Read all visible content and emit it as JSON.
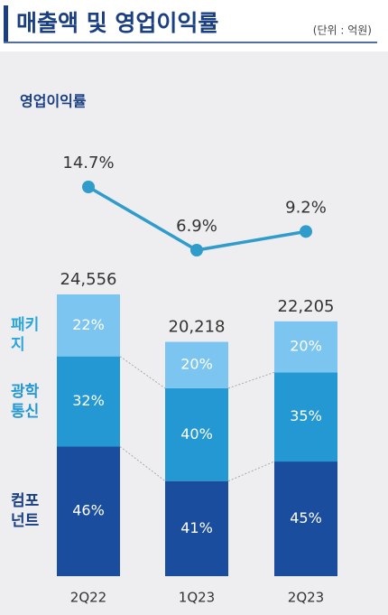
{
  "chart_data": {
    "type": "bar",
    "title": "매출액 및 영업이익률",
    "unit_note": "(단위 : 억원)",
    "categories": [
      "2Q22",
      "1Q23",
      "2Q23"
    ],
    "totals": [
      24556,
      20218,
      22205
    ],
    "total_labels": [
      "24,556",
      "20,218",
      "22,205"
    ],
    "series": [
      {
        "name": "컴포 넌트",
        "color": "#1b4d9e",
        "values": [
          46,
          41,
          45
        ],
        "value_labels": [
          "46%",
          "41%",
          "45%"
        ]
      },
      {
        "name": "광학 통신",
        "color": "#2498d2",
        "values": [
          32,
          40,
          35
        ],
        "value_labels": [
          "32%",
          "40%",
          "35%"
        ]
      },
      {
        "name": "패키지",
        "color": "#7bc5f0",
        "values": [
          22,
          20,
          20
        ],
        "value_labels": [
          "22%",
          "20%",
          "20%"
        ]
      }
    ],
    "line": {
      "name": "영업이익률",
      "color": "#2f9ccb",
      "values": [
        14.7,
        6.9,
        9.2
      ],
      "value_labels": [
        "14.7%",
        "6.9%",
        "9.2%"
      ]
    }
  }
}
